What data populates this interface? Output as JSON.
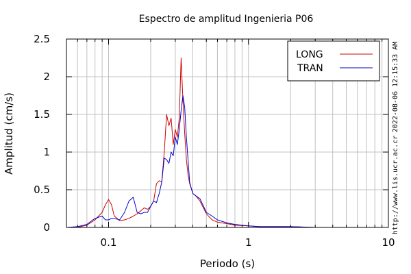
{
  "chart_data": {
    "type": "line",
    "title": "Espectro de amplitud Ingenieria P06",
    "xlabel": "Periodo (s)",
    "ylabel": "Amplitud (cm/s)",
    "xscale": "log",
    "xlim": [
      0.05,
      10
    ],
    "ylim": [
      0,
      2.5
    ],
    "x_ticks": [
      0.1,
      1,
      10
    ],
    "x_tick_labels": [
      "0.1",
      "1",
      "10"
    ],
    "y_ticks": [
      0,
      0.5,
      1,
      1.5,
      2,
      2.5
    ],
    "y_tick_labels": [
      "0",
      "0.5",
      "1",
      "1.5",
      "2",
      "2.5"
    ],
    "grid": true,
    "legend_position": "top-right",
    "series": [
      {
        "name": "LONG",
        "color": "#cc0000",
        "x": [
          0.05,
          0.06,
          0.07,
          0.08,
          0.09,
          0.095,
          0.1,
          0.105,
          0.11,
          0.12,
          0.13,
          0.14,
          0.15,
          0.16,
          0.17,
          0.18,
          0.19,
          0.2,
          0.21,
          0.22,
          0.23,
          0.24,
          0.25,
          0.26,
          0.27,
          0.28,
          0.29,
          0.3,
          0.31,
          0.32,
          0.33,
          0.34,
          0.35,
          0.36,
          0.37,
          0.38,
          0.39,
          0.4,
          0.42,
          0.45,
          0.5,
          0.55,
          0.6,
          0.7,
          0.8,
          1.0,
          1.2,
          1.5,
          2,
          3,
          5,
          7,
          10
        ],
        "y": [
          0.0,
          0.0,
          0.03,
          0.1,
          0.2,
          0.3,
          0.37,
          0.3,
          0.15,
          0.09,
          0.1,
          0.12,
          0.15,
          0.18,
          0.22,
          0.26,
          0.24,
          0.28,
          0.35,
          0.58,
          0.62,
          0.6,
          1.0,
          1.5,
          1.35,
          1.45,
          1.1,
          1.3,
          1.2,
          1.45,
          2.25,
          1.7,
          1.25,
          0.9,
          0.7,
          0.58,
          0.52,
          0.45,
          0.42,
          0.35,
          0.18,
          0.1,
          0.07,
          0.05,
          0.03,
          0.02,
          0.01,
          0.01,
          0.01,
          0.0,
          0.0,
          0.0,
          0.0
        ]
      },
      {
        "name": "TRAN",
        "color": "#0000cc",
        "x": [
          0.05,
          0.06,
          0.07,
          0.08,
          0.09,
          0.095,
          0.1,
          0.105,
          0.11,
          0.12,
          0.13,
          0.14,
          0.15,
          0.16,
          0.17,
          0.18,
          0.19,
          0.2,
          0.21,
          0.22,
          0.23,
          0.24,
          0.25,
          0.26,
          0.27,
          0.28,
          0.29,
          0.3,
          0.31,
          0.32,
          0.33,
          0.34,
          0.35,
          0.36,
          0.37,
          0.38,
          0.39,
          0.4,
          0.42,
          0.45,
          0.5,
          0.55,
          0.6,
          0.7,
          0.8,
          1.0,
          1.2,
          1.5,
          2,
          3,
          5,
          7,
          10
        ],
        "y": [
          0.0,
          0.01,
          0.04,
          0.12,
          0.15,
          0.1,
          0.1,
          0.12,
          0.12,
          0.1,
          0.2,
          0.35,
          0.4,
          0.2,
          0.18,
          0.2,
          0.2,
          0.28,
          0.35,
          0.33,
          0.45,
          0.6,
          0.92,
          0.9,
          0.85,
          1.0,
          0.95,
          1.2,
          1.1,
          1.3,
          1.55,
          1.75,
          1.6,
          1.2,
          0.9,
          0.6,
          0.52,
          0.45,
          0.42,
          0.38,
          0.2,
          0.15,
          0.1,
          0.06,
          0.04,
          0.02,
          0.01,
          0.01,
          0.01,
          0.0,
          0.0,
          0.0,
          0.0
        ]
      }
    ]
  },
  "side_labels": {
    "timestamp": "2022-08-06 12:15:33 AM",
    "url": "http://www.lis.ucr.ac.cr"
  }
}
